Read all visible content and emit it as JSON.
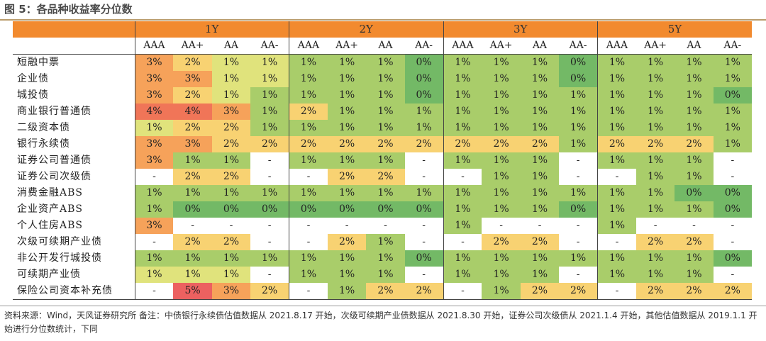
{
  "title": "图 5：各品种收益率分位数",
  "periods": [
    "1Y",
    "2Y",
    "3Y",
    "5Y"
  ],
  "ratings": [
    "AAA",
    "AA+",
    "AA",
    "AA-"
  ],
  "rows": [
    {
      "label": "短融中票",
      "values": [
        "3%",
        "2%",
        "1%",
        "1%",
        "1%",
        "1%",
        "1%",
        "0%",
        "1%",
        "1%",
        "1%",
        "0%",
        "1%",
        "1%",
        "1%",
        "1%"
      ]
    },
    {
      "label": "企业债",
      "values": [
        "3%",
        "3%",
        "1%",
        "1%",
        "1%",
        "1%",
        "1%",
        "0%",
        "1%",
        "1%",
        "1%",
        "0%",
        "1%",
        "1%",
        "1%",
        "1%"
      ]
    },
    {
      "label": "城投债",
      "values": [
        "3%",
        "2%",
        "1%",
        "1%",
        "1%",
        "1%",
        "1%",
        "0%",
        "1%",
        "1%",
        "1%",
        "1%",
        "1%",
        "1%",
        "1%",
        "0%"
      ]
    },
    {
      "label": "商业银行普通债",
      "values": [
        "4%",
        "4%",
        "3%",
        "1%",
        "2%",
        "1%",
        "1%",
        "1%",
        "1%",
        "1%",
        "1%",
        "1%",
        "1%",
        "1%",
        "1%",
        "1%"
      ]
    },
    {
      "label": "二级资本债",
      "values": [
        "1%",
        "2%",
        "2%",
        "1%",
        "1%",
        "1%",
        "1%",
        "1%",
        "1%",
        "1%",
        "1%",
        "1%",
        "1%",
        "1%",
        "1%",
        "1%"
      ]
    },
    {
      "label": "银行永续债",
      "values": [
        "3%",
        "3%",
        "2%",
        "2%",
        "2%",
        "2%",
        "2%",
        "2%",
        "2%",
        "2%",
        "2%",
        "1%",
        "2%",
        "2%",
        "2%",
        "1%"
      ]
    },
    {
      "label": "证券公司普通债",
      "values": [
        "3%",
        "1%",
        "1%",
        "-",
        "1%",
        "1%",
        "1%",
        "-",
        "1%",
        "1%",
        "1%",
        "-",
        "1%",
        "1%",
        "1%",
        "-"
      ]
    },
    {
      "label": "证券公司次级债",
      "values": [
        "-",
        "2%",
        "2%",
        "-",
        "-",
        "2%",
        "2%",
        "-",
        "-",
        "1%",
        "1%",
        "-",
        "-",
        "1%",
        "1%",
        "-"
      ]
    },
    {
      "label": "消费金融ABS",
      "values": [
        "1%",
        "1%",
        "1%",
        "1%",
        "1%",
        "1%",
        "1%",
        "1%",
        "1%",
        "1%",
        "1%",
        "1%",
        "1%",
        "1%",
        "0%",
        "0%"
      ]
    },
    {
      "label": "企业资产ABS",
      "values": [
        "1%",
        "0%",
        "0%",
        "0%",
        "0%",
        "0%",
        "0%",
        "0%",
        "1%",
        "1%",
        "1%",
        "0%",
        "1%",
        "1%",
        "1%",
        "0%"
      ]
    },
    {
      "label": "个人住房ABS",
      "values": [
        "3%",
        "-",
        "-",
        "-",
        "-",
        "-",
        "-",
        "-",
        "1%",
        "-",
        "-",
        "-",
        "1%",
        "-",
        "-",
        "-"
      ]
    },
    {
      "label": "次级可续期产业债",
      "values": [
        "-",
        "2%",
        "2%",
        "-",
        "-",
        "2%",
        "1%",
        "-",
        "-",
        "2%",
        "2%",
        "-",
        "-",
        "2%",
        "2%",
        "-"
      ]
    },
    {
      "label": "非公开发行城投债",
      "values": [
        "1%",
        "1%",
        "1%",
        "1%",
        "1%",
        "1%",
        "1%",
        "0%",
        "1%",
        "1%",
        "1%",
        "1%",
        "1%",
        "1%",
        "1%",
        "0%"
      ]
    },
    {
      "label": "可续期产业债",
      "values": [
        "1%",
        "1%",
        "1%",
        "-",
        "1%",
        "1%",
        "1%",
        "-",
        "1%",
        "1%",
        "1%",
        "-",
        "1%",
        "1%",
        "1%",
        "-"
      ]
    },
    {
      "label": "保险公司资本补充债",
      "values": [
        "-",
        "5%",
        "3%",
        "2%",
        "-",
        "1%",
        "2%",
        "2%",
        "-",
        "1%",
        "2%",
        "2%",
        "-",
        "2%",
        "2%",
        "2%"
      ]
    }
  ],
  "colors": {
    "0%": "#73b966",
    "1%": "#e0e37c",
    "1%-strong": "#a9cd6a",
    "2%": "#f8d272",
    "3%": "#f6a25a",
    "4%": "#f07558",
    "5%": "#ec6160",
    "-": "#ffffff",
    "header": "#f28a2e"
  },
  "source": "资料来源：Wind，天风证券研究所   备注：中债银行永续债估值数据从 2021.8.17 开始，次级可续期产业债数据从 2021.8.30 开始，证券公司次级债从 2021.1.4 开始，其他估值数据从 2019.1.1 开始进行分位数统计，下同"
}
